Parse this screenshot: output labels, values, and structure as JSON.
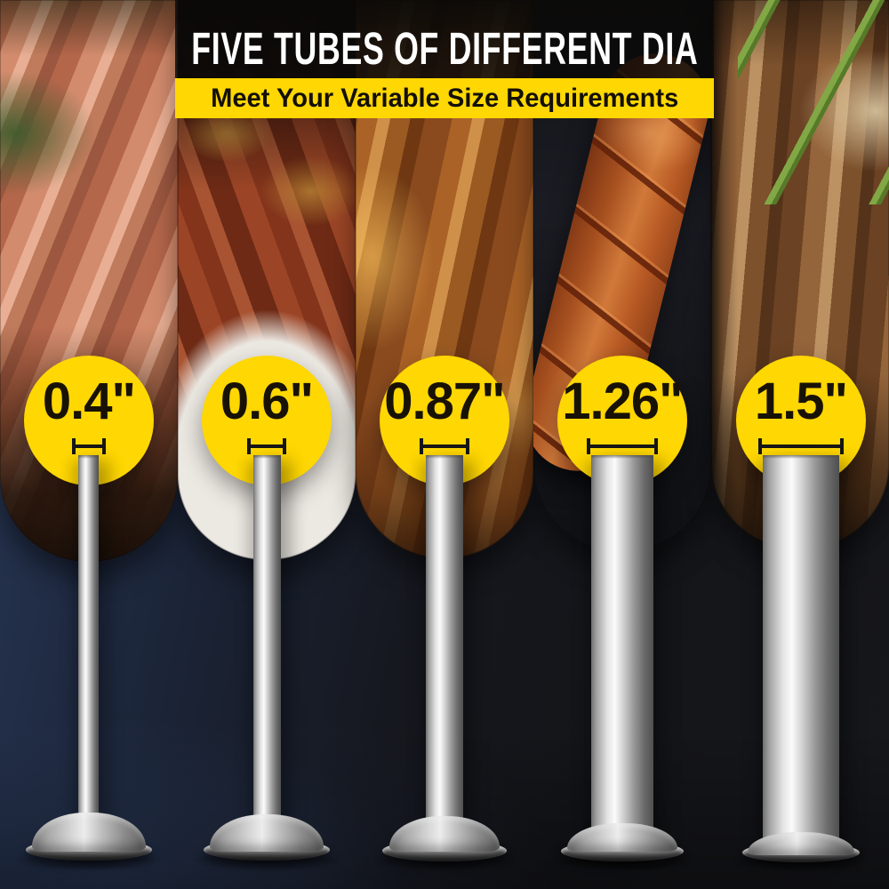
{
  "header": {
    "title": "FIVE TUBES OF DIFFERENT DIA",
    "subtitle": "Meet Your Variable Size Requirements"
  },
  "tubes": [
    {
      "label": "0.4\"",
      "diameter_inches": 0.4
    },
    {
      "label": "0.6\"",
      "diameter_inches": 0.6
    },
    {
      "label": "0.87\"",
      "diameter_inches": 0.87
    },
    {
      "label": "1.26\"",
      "diameter_inches": 1.26
    },
    {
      "label": "1.5\"",
      "diameter_inches": 1.5
    }
  ],
  "background_photos": [
    "fresh hot dog sausages with greens",
    "grilled red sausages on white plate",
    "golden roasted sausages close-up",
    "scored glazed sausage on dark grill",
    "grilled sausage with green chives"
  ],
  "colors": {
    "accent_yellow": "#ffd702",
    "title_text": "#ffffff",
    "banner_text": "#131006",
    "badge_text": "#181206",
    "steel_highlight": "#fbfbfb",
    "steel_shadow": "#4f4f4f",
    "backdrop_navy": "#2a3956",
    "backdrop_dark": "#141519"
  }
}
